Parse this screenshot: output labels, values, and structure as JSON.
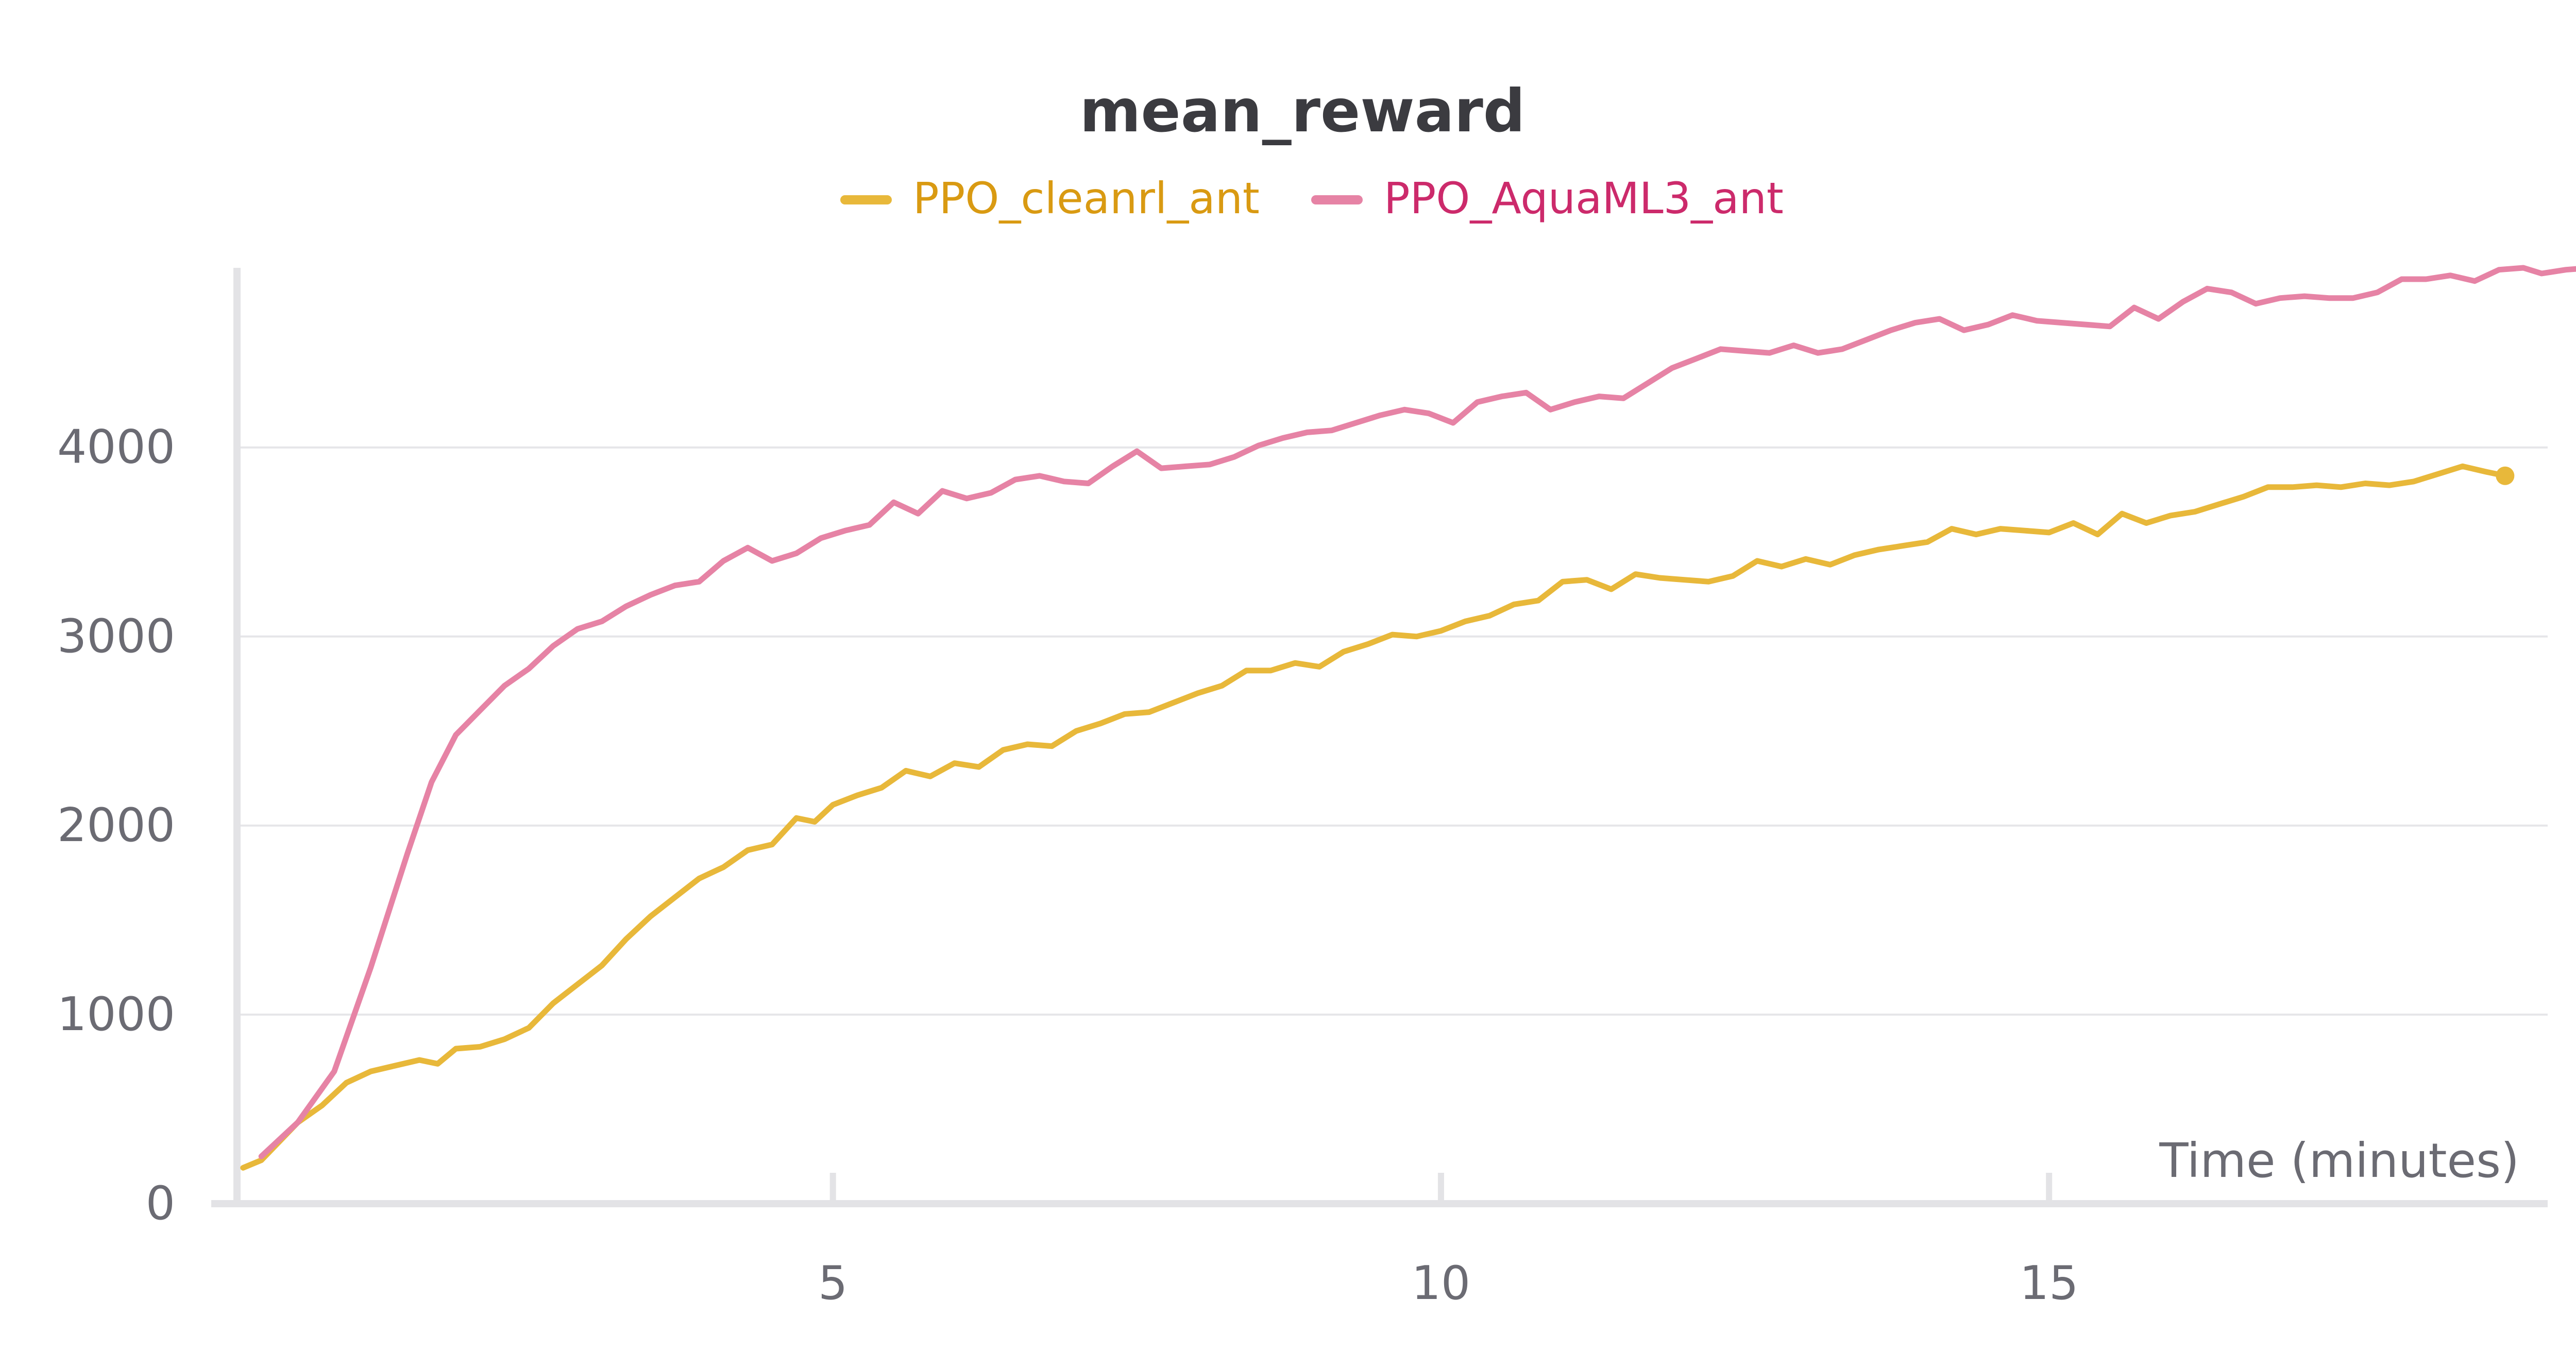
{
  "chart_data": {
    "type": "line",
    "title": "mean_reward",
    "xlabel": "Time (minutes)",
    "ylabel": "",
    "xlim": [
      0.1,
      19.1
    ],
    "ylim": [
      0,
      4950
    ],
    "x_ticks": [
      5,
      10,
      15
    ],
    "y_ticks": [
      0,
      1000,
      2000,
      3000,
      4000
    ],
    "grid": true,
    "legend_position": "top-center",
    "series": [
      {
        "name": "PPO_cleanrl_ant",
        "color": "#e8b83a",
        "legend_text_color": "#d99a12",
        "points": [
          [
            0.15,
            190
          ],
          [
            0.3,
            230
          ],
          [
            0.45,
            330
          ],
          [
            0.6,
            430
          ],
          [
            0.8,
            520
          ],
          [
            1.0,
            640
          ],
          [
            1.2,
            700
          ],
          [
            1.4,
            730
          ],
          [
            1.6,
            760
          ],
          [
            1.75,
            740
          ],
          [
            1.9,
            820
          ],
          [
            2.1,
            830
          ],
          [
            2.3,
            870
          ],
          [
            2.5,
            930
          ],
          [
            2.7,
            1060
          ],
          [
            2.9,
            1160
          ],
          [
            3.1,
            1260
          ],
          [
            3.3,
            1400
          ],
          [
            3.5,
            1520
          ],
          [
            3.7,
            1620
          ],
          [
            3.9,
            1720
          ],
          [
            4.1,
            1780
          ],
          [
            4.3,
            1870
          ],
          [
            4.5,
            1900
          ],
          [
            4.7,
            2040
          ],
          [
            4.85,
            2020
          ],
          [
            5.0,
            2110
          ],
          [
            5.2,
            2160
          ],
          [
            5.4,
            2200
          ],
          [
            5.6,
            2290
          ],
          [
            5.8,
            2260
          ],
          [
            6.0,
            2330
          ],
          [
            6.2,
            2310
          ],
          [
            6.4,
            2400
          ],
          [
            6.6,
            2430
          ],
          [
            6.8,
            2420
          ],
          [
            7.0,
            2500
          ],
          [
            7.2,
            2540
          ],
          [
            7.4,
            2590
          ],
          [
            7.6,
            2600
          ],
          [
            7.8,
            2650
          ],
          [
            8.0,
            2700
          ],
          [
            8.2,
            2740
          ],
          [
            8.4,
            2820
          ],
          [
            8.6,
            2820
          ],
          [
            8.8,
            2860
          ],
          [
            9.0,
            2840
          ],
          [
            9.2,
            2920
          ],
          [
            9.4,
            2960
          ],
          [
            9.6,
            3010
          ],
          [
            9.8,
            3000
          ],
          [
            10.0,
            3030
          ],
          [
            10.2,
            3080
          ],
          [
            10.4,
            3110
          ],
          [
            10.6,
            3170
          ],
          [
            10.8,
            3190
          ],
          [
            11.0,
            3290
          ],
          [
            11.2,
            3300
          ],
          [
            11.4,
            3250
          ],
          [
            11.6,
            3330
          ],
          [
            11.8,
            3310
          ],
          [
            12.0,
            3300
          ],
          [
            12.2,
            3290
          ],
          [
            12.4,
            3320
          ],
          [
            12.6,
            3400
          ],
          [
            12.8,
            3370
          ],
          [
            13.0,
            3410
          ],
          [
            13.2,
            3380
          ],
          [
            13.4,
            3430
          ],
          [
            13.6,
            3460
          ],
          [
            13.8,
            3480
          ],
          [
            14.0,
            3500
          ],
          [
            14.2,
            3570
          ],
          [
            14.4,
            3540
          ],
          [
            14.6,
            3570
          ],
          [
            14.8,
            3560
          ],
          [
            15.0,
            3550
          ],
          [
            15.2,
            3600
          ],
          [
            15.4,
            3540
          ],
          [
            15.6,
            3650
          ],
          [
            15.8,
            3600
          ],
          [
            16.0,
            3640
          ],
          [
            16.2,
            3660
          ],
          [
            16.4,
            3700
          ],
          [
            16.6,
            3740
          ],
          [
            16.8,
            3790
          ],
          [
            17.0,
            3790
          ],
          [
            17.2,
            3800
          ],
          [
            17.4,
            3790
          ],
          [
            17.6,
            3810
          ],
          [
            17.8,
            3800
          ],
          [
            18.0,
            3820
          ],
          [
            18.2,
            3860
          ],
          [
            18.4,
            3900
          ],
          [
            18.6,
            3870
          ],
          [
            18.75,
            3850
          ]
        ]
      },
      {
        "name": "PPO_AquaML3_ant",
        "color": "#e683a5",
        "legend_text_color": "#cc2a6b",
        "points": [
          [
            0.3,
            250
          ],
          [
            0.6,
            430
          ],
          [
            0.9,
            700
          ],
          [
            1.2,
            1250
          ],
          [
            1.5,
            1850
          ],
          [
            1.7,
            2230
          ],
          [
            1.9,
            2480
          ],
          [
            2.1,
            2610
          ],
          [
            2.3,
            2740
          ],
          [
            2.5,
            2830
          ],
          [
            2.7,
            2950
          ],
          [
            2.9,
            3040
          ],
          [
            3.1,
            3080
          ],
          [
            3.3,
            3160
          ],
          [
            3.5,
            3220
          ],
          [
            3.7,
            3270
          ],
          [
            3.9,
            3290
          ],
          [
            4.1,
            3400
          ],
          [
            4.3,
            3470
          ],
          [
            4.5,
            3400
          ],
          [
            4.7,
            3440
          ],
          [
            4.9,
            3520
          ],
          [
            5.1,
            3560
          ],
          [
            5.3,
            3590
          ],
          [
            5.5,
            3710
          ],
          [
            5.7,
            3650
          ],
          [
            5.9,
            3770
          ],
          [
            6.1,
            3730
          ],
          [
            6.3,
            3760
          ],
          [
            6.5,
            3830
          ],
          [
            6.7,
            3850
          ],
          [
            6.9,
            3820
          ],
          [
            7.1,
            3810
          ],
          [
            7.3,
            3900
          ],
          [
            7.5,
            3980
          ],
          [
            7.7,
            3890
          ],
          [
            7.9,
            3900
          ],
          [
            8.1,
            3910
          ],
          [
            8.3,
            3950
          ],
          [
            8.5,
            4010
          ],
          [
            8.7,
            4050
          ],
          [
            8.9,
            4080
          ],
          [
            9.1,
            4090
          ],
          [
            9.3,
            4130
          ],
          [
            9.5,
            4170
          ],
          [
            9.7,
            4200
          ],
          [
            9.9,
            4180
          ],
          [
            10.1,
            4130
          ],
          [
            10.3,
            4240
          ],
          [
            10.5,
            4270
          ],
          [
            10.7,
            4290
          ],
          [
            10.9,
            4200
          ],
          [
            11.1,
            4240
          ],
          [
            11.3,
            4270
          ],
          [
            11.5,
            4260
          ],
          [
            11.7,
            4340
          ],
          [
            11.9,
            4420
          ],
          [
            12.1,
            4470
          ],
          [
            12.3,
            4520
          ],
          [
            12.5,
            4510
          ],
          [
            12.7,
            4500
          ],
          [
            12.9,
            4540
          ],
          [
            13.1,
            4500
          ],
          [
            13.3,
            4520
          ],
          [
            13.5,
            4570
          ],
          [
            13.7,
            4620
          ],
          [
            13.9,
            4660
          ],
          [
            14.1,
            4680
          ],
          [
            14.3,
            4620
          ],
          [
            14.5,
            4650
          ],
          [
            14.7,
            4700
          ],
          [
            14.9,
            4670
          ],
          [
            15.1,
            4660
          ],
          [
            15.3,
            4650
          ],
          [
            15.5,
            4640
          ],
          [
            15.7,
            4740
          ],
          [
            15.9,
            4680
          ],
          [
            16.1,
            4770
          ],
          [
            16.3,
            4840
          ],
          [
            16.5,
            4820
          ],
          [
            16.7,
            4760
          ],
          [
            16.9,
            4790
          ],
          [
            17.1,
            4800
          ],
          [
            17.3,
            4790
          ],
          [
            17.5,
            4790
          ],
          [
            17.7,
            4820
          ],
          [
            17.9,
            4890
          ],
          [
            18.1,
            4890
          ],
          [
            18.3,
            4910
          ],
          [
            18.5,
            4880
          ],
          [
            18.7,
            4940
          ],
          [
            18.9,
            4950
          ],
          [
            19.05,
            4920
          ],
          [
            19.25,
            4940
          ],
          [
            19.45,
            4950
          ]
        ]
      }
    ]
  }
}
